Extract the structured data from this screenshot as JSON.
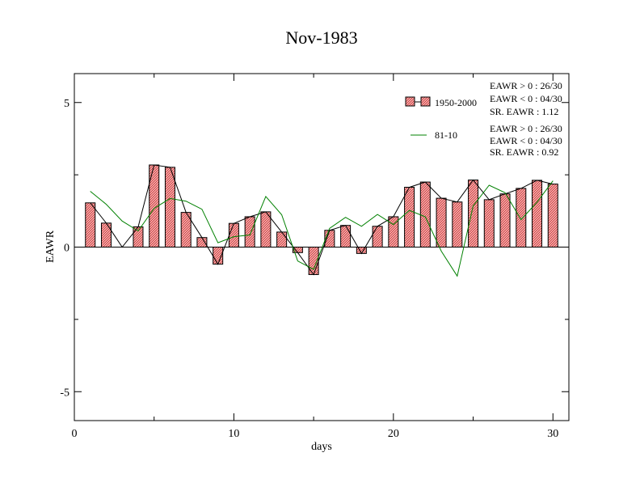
{
  "chart_data": {
    "type": "bar",
    "title": "Nov-1983",
    "xlabel": "days",
    "ylabel": "EAWR",
    "xlim": [
      0,
      31
    ],
    "ylim": [
      -6,
      6
    ],
    "xticks": [
      "0",
      "10",
      "20",
      "30"
    ],
    "yticks": [
      "5",
      "0",
      "-5"
    ],
    "x": [
      1,
      2,
      3,
      4,
      5,
      6,
      7,
      8,
      9,
      10,
      11,
      12,
      13,
      14,
      15,
      16,
      17,
      18,
      19,
      20,
      21,
      22,
      23,
      24,
      25,
      26,
      27,
      28,
      29,
      30
    ],
    "series": [
      {
        "name": "1950-2000",
        "kind": "bar",
        "color": "#f08080",
        "values": [
          1.53,
          0.83,
          0.0,
          0.7,
          2.84,
          2.76,
          1.2,
          0.33,
          -0.59,
          0.82,
          1.05,
          1.22,
          0.52,
          -0.19,
          -0.95,
          0.58,
          0.75,
          -0.22,
          0.72,
          1.05,
          2.07,
          2.25,
          1.69,
          1.56,
          2.32,
          1.64,
          1.84,
          2.03,
          2.31,
          2.18
        ]
      },
      {
        "name": "81-10",
        "kind": "line",
        "color": "#008000",
        "values": [
          1.93,
          1.48,
          0.9,
          0.56,
          1.34,
          1.68,
          1.59,
          1.31,
          0.15,
          0.36,
          0.42,
          1.75,
          1.12,
          -0.48,
          -0.77,
          0.65,
          1.03,
          0.72,
          1.13,
          0.78,
          1.27,
          1.05,
          -0.14,
          -1.0,
          1.42,
          2.14,
          1.88,
          0.95,
          1.55,
          2.29
        ]
      }
    ],
    "legend": [
      {
        "label": "1950-2000",
        "stats": [
          "EAWR > 0 : 26/30",
          "EAWR < 0 : 04/30",
          "SR. EAWR :  1.12"
        ]
      },
      {
        "label": "81-10",
        "stats": [
          "EAWR > 0 : 26/30",
          "EAWR < 0 : 04/30",
          "SR. EAWR :  0.92"
        ]
      }
    ],
    "legend_position": "top-right",
    "grid": false
  }
}
